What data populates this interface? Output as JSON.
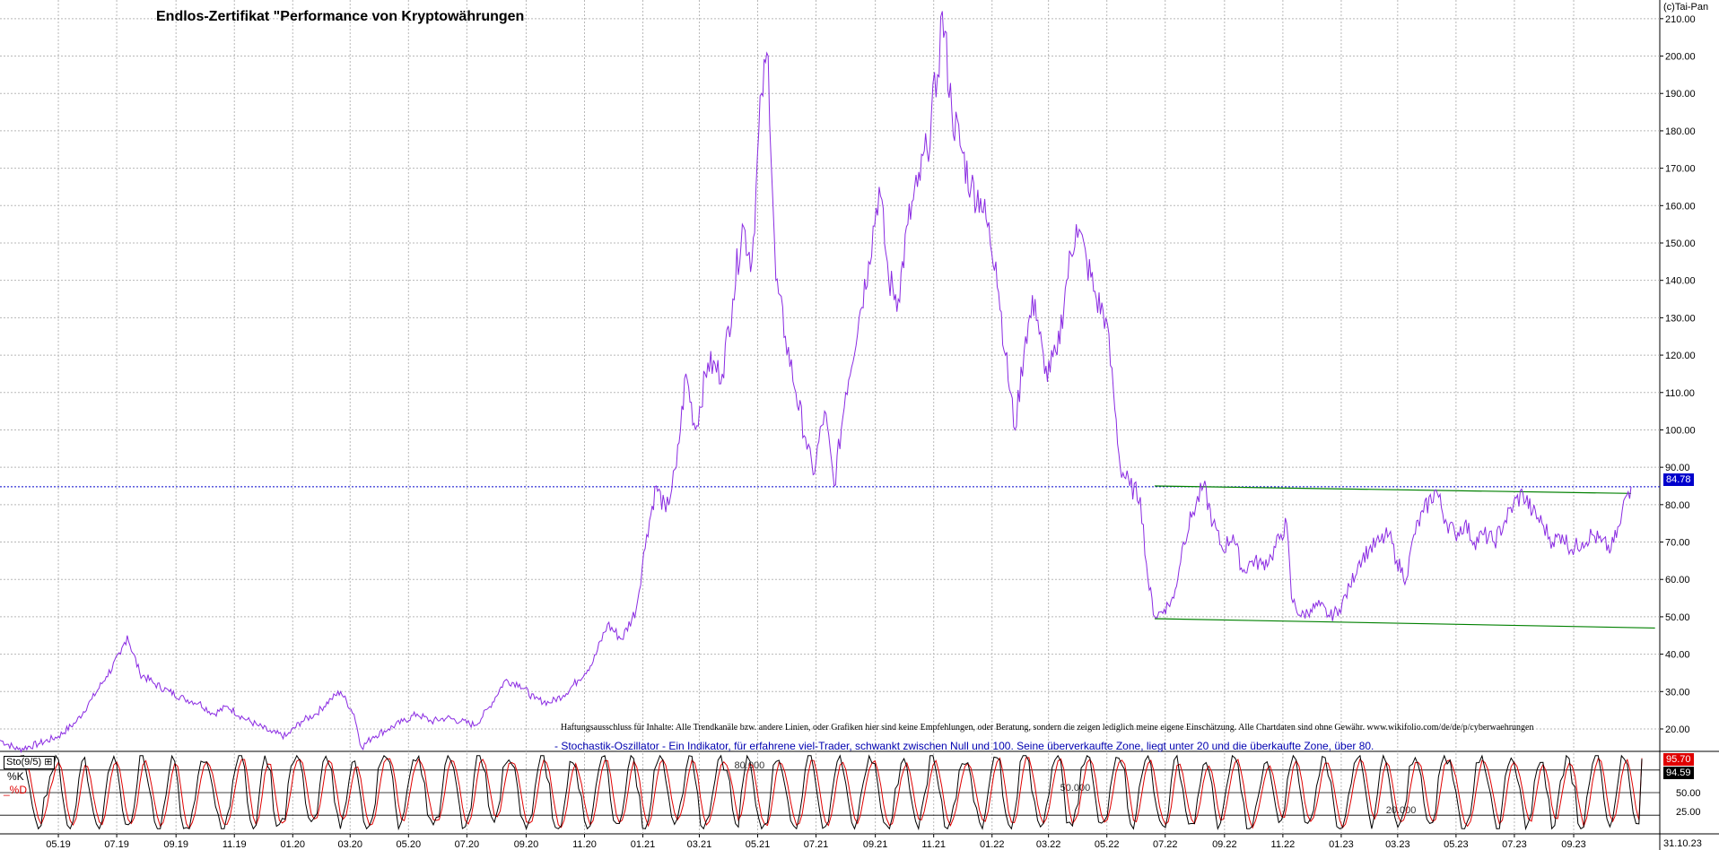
{
  "chart_data": [
    {
      "type": "line",
      "title": "Endlos-Zertifikat \"Performance von Kryptowährungen",
      "x_ticks": [
        "05.19",
        "07.19",
        "09.19",
        "11.19",
        "01.20",
        "03.20",
        "05.20",
        "07.20",
        "09.20",
        "11.20",
        "01.21",
        "03.21",
        "05.21",
        "07.21",
        "09.21",
        "11.21",
        "01.22",
        "03.22",
        "05.22",
        "07.22",
        "09.22",
        "11.22",
        "01.23",
        "03.23",
        "05.23",
        "07.23",
        "09.23"
      ],
      "y_ticks": [
        "20.00",
        "30.00",
        "40.00",
        "50.00",
        "60.00",
        "70.00",
        "80.00",
        "90.00",
        "100.00",
        "110.00",
        "120.00",
        "130.00",
        "140.00",
        "150.00",
        "160.00",
        "170.00",
        "180.00",
        "190.00",
        "200.00",
        "210.00"
      ],
      "ylim": [
        14,
        215
      ],
      "grid": true,
      "series": [
        {
          "color": "#8a2be2",
          "points": [
            [
              "2019-03-01",
              17
            ],
            [
              "2019-03-20",
              14.5
            ],
            [
              "2019-04-10",
              16
            ],
            [
              "2019-05-01",
              18
            ],
            [
              "2019-05-20",
              22
            ],
            [
              "2019-06-05",
              28
            ],
            [
              "2019-06-20",
              34
            ],
            [
              "2019-07-05",
              40
            ],
            [
              "2019-07-12",
              45
            ],
            [
              "2019-07-25",
              35
            ],
            [
              "2019-08-10",
              32
            ],
            [
              "2019-08-25",
              30
            ],
            [
              "2019-09-10",
              28
            ],
            [
              "2019-09-25",
              27
            ],
            [
              "2019-10-10",
              24
            ],
            [
              "2019-10-25",
              26
            ],
            [
              "2019-11-10",
              23
            ],
            [
              "2019-11-25",
              21
            ],
            [
              "2019-12-10",
              19
            ],
            [
              "2019-12-25",
              18
            ],
            [
              "2020-01-10",
              22
            ],
            [
              "2020-01-25",
              24
            ],
            [
              "2020-02-10",
              28
            ],
            [
              "2020-02-20",
              30
            ],
            [
              "2020-03-05",
              24
            ],
            [
              "2020-03-13",
              15
            ],
            [
              "2020-03-25",
              18
            ],
            [
              "2020-04-10",
              20
            ],
            [
              "2020-04-25",
              22
            ],
            [
              "2020-05-10",
              24
            ],
            [
              "2020-05-25",
              22
            ],
            [
              "2020-06-10",
              23
            ],
            [
              "2020-06-25",
              22
            ],
            [
              "2020-07-10",
              21
            ],
            [
              "2020-07-25",
              26
            ],
            [
              "2020-08-10",
              33
            ],
            [
              "2020-08-25",
              32
            ],
            [
              "2020-09-10",
              28
            ],
            [
              "2020-09-25",
              27
            ],
            [
              "2020-10-10",
              29
            ],
            [
              "2020-10-25",
              33
            ],
            [
              "2020-11-10",
              38
            ],
            [
              "2020-11-25",
              48
            ],
            [
              "2020-12-10",
              44
            ],
            [
              "2020-12-25",
              52
            ],
            [
              "2021-01-05",
              72
            ],
            [
              "2021-01-15",
              85
            ],
            [
              "2021-01-25",
              78
            ],
            [
              "2021-02-05",
              90
            ],
            [
              "2021-02-15",
              115
            ],
            [
              "2021-02-25",
              100
            ],
            [
              "2021-03-10",
              118
            ],
            [
              "2021-03-25",
              115
            ],
            [
              "2021-04-05",
              135
            ],
            [
              "2021-04-15",
              155
            ],
            [
              "2021-04-25",
              145
            ],
            [
              "2021-05-05",
              190
            ],
            [
              "2021-05-12",
              200
            ],
            [
              "2021-05-20",
              140
            ],
            [
              "2021-05-30",
              125
            ],
            [
              "2021-06-10",
              110
            ],
            [
              "2021-06-20",
              98
            ],
            [
              "2021-06-28",
              88
            ],
            [
              "2021-07-10",
              105
            ],
            [
              "2021-07-20",
              85
            ],
            [
              "2021-08-01",
              110
            ],
            [
              "2021-08-15",
              130
            ],
            [
              "2021-08-25",
              145
            ],
            [
              "2021-09-05",
              165
            ],
            [
              "2021-09-15",
              140
            ],
            [
              "2021-09-25",
              135
            ],
            [
              "2021-10-05",
              155
            ],
            [
              "2021-10-15",
              165
            ],
            [
              "2021-10-25",
              175
            ],
            [
              "2021-11-05",
              195
            ],
            [
              "2021-11-10",
              212
            ],
            [
              "2021-11-20",
              185
            ],
            [
              "2021-11-30",
              175
            ],
            [
              "2021-12-10",
              165
            ],
            [
              "2021-12-20",
              162
            ],
            [
              "2022-01-05",
              145
            ],
            [
              "2022-01-15",
              120
            ],
            [
              "2022-01-25",
              100
            ],
            [
              "2022-02-05",
              125
            ],
            [
              "2022-02-15",
              135
            ],
            [
              "2022-02-25",
              115
            ],
            [
              "2022-03-10",
              120
            ],
            [
              "2022-03-20",
              140
            ],
            [
              "2022-03-30",
              155
            ],
            [
              "2022-04-10",
              145
            ],
            [
              "2022-04-20",
              135
            ],
            [
              "2022-04-30",
              130
            ],
            [
              "2022-05-08",
              110
            ],
            [
              "2022-05-15",
              90
            ],
            [
              "2022-05-25",
              85
            ],
            [
              "2022-06-05",
              82
            ],
            [
              "2022-06-13",
              60
            ],
            [
              "2022-06-20",
              50
            ],
            [
              "2022-06-30",
              52
            ],
            [
              "2022-07-10",
              55
            ],
            [
              "2022-07-20",
              70
            ],
            [
              "2022-07-30",
              78
            ],
            [
              "2022-08-10",
              85
            ],
            [
              "2022-08-20",
              75
            ],
            [
              "2022-08-30",
              68
            ],
            [
              "2022-09-10",
              72
            ],
            [
              "2022-09-20",
              62
            ],
            [
              "2022-09-30",
              65
            ],
            [
              "2022-10-10",
              64
            ],
            [
              "2022-10-20",
              66
            ],
            [
              "2022-10-30",
              72
            ],
            [
              "2022-11-05",
              75
            ],
            [
              "2022-11-10",
              55
            ],
            [
              "2022-11-20",
              50
            ],
            [
              "2022-11-30",
              52
            ],
            [
              "2022-12-10",
              53
            ],
            [
              "2022-12-20",
              50
            ],
            [
              "2022-12-30",
              52
            ],
            [
              "2023-01-10",
              58
            ],
            [
              "2023-01-20",
              65
            ],
            [
              "2023-01-30",
              68
            ],
            [
              "2023-02-10",
              70
            ],
            [
              "2023-02-20",
              72
            ],
            [
              "2023-02-28",
              65
            ],
            [
              "2023-03-10",
              60
            ],
            [
              "2023-03-18",
              72
            ],
            [
              "2023-03-28",
              78
            ],
            [
              "2023-04-10",
              84
            ],
            [
              "2023-04-20",
              76
            ],
            [
              "2023-04-30",
              72
            ],
            [
              "2023-05-10",
              75
            ],
            [
              "2023-05-20",
              70
            ],
            [
              "2023-05-30",
              72
            ],
            [
              "2023-06-10",
              70
            ],
            [
              "2023-06-20",
              75
            ],
            [
              "2023-06-30",
              80
            ],
            [
              "2023-07-10",
              83
            ],
            [
              "2023-07-20",
              78
            ],
            [
              "2023-07-30",
              75
            ],
            [
              "2023-08-10",
              70
            ],
            [
              "2023-08-20",
              72
            ],
            [
              "2023-08-30",
              68
            ],
            [
              "2023-09-10",
              70
            ],
            [
              "2023-09-20",
              72
            ],
            [
              "2023-09-30",
              70
            ],
            [
              "2023-10-10",
              68
            ],
            [
              "2023-10-20",
              75
            ],
            [
              "2023-10-25",
              82
            ],
            [
              "2023-10-31",
              84.78
            ]
          ]
        }
      ],
      "current_value": "84.78",
      "current_value_color": "#0000cc",
      "hline_value": 84.78,
      "trendlines": [
        {
          "color": "#008000",
          "from": [
            "2022-06-20",
            85
          ],
          "to": [
            "2023-10-31",
            83
          ]
        },
        {
          "color": "#008000",
          "from": [
            "2022-06-20",
            49.5
          ],
          "to": [
            "2023-11-25",
            47
          ]
        }
      ]
    },
    {
      "type": "line",
      "title": "Sto(9/5)",
      "y_ticks": [
        "25.00",
        "50.00"
      ],
      "ylim": [
        0,
        100
      ],
      "reference_lines": [
        20,
        50,
        80
      ],
      "reference_labels": [
        "20.000",
        "50.000",
        "80.000"
      ],
      "series": [
        {
          "name": "%K",
          "color": "#000000",
          "last": "94.59"
        },
        {
          "name": "%D",
          "color": "#e00000",
          "last": "95.70"
        }
      ]
    }
  ],
  "x_axis_last_label": "31.10.23",
  "copyright": "(c)Tai-Pan",
  "disclaimer": "Haftungsausschluss für Inhalte: Alle Trendkanäle bzw. andere Linien, oder Grafiken hier sind keine Empfehlungen, oder Beratung, sondern die zeigen lediglich meine eigene Einschätzung. Alle Chartdaten sind ohne Gewähr.  www.wikifolio.com/de/de/p/cyberwaehrungen",
  "stochastic_description": "- Stochastik-Oszillator - Ein Indikator, für erfahrene viel-Trader, schwankt zwischen Null und 100. Seine überverkaufte Zone, liegt unter 20 und die überkaufte Zone, über 80.",
  "sto_label": "Sto(9/5)",
  "sto_k_label": "%K",
  "sto_d_label": "_%D",
  "sto_last_d": "95.70",
  "sto_last_k": "94.59"
}
